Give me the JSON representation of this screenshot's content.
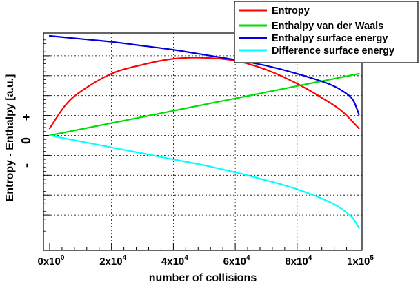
{
  "chart_data": {
    "type": "line",
    "xlabel": "number of collisions",
    "ylabel": "Entropy - Enthalpy [a.u.]",
    "xlim": [
      0,
      100000
    ],
    "ylim": [
      -100,
      100
    ],
    "grid": true,
    "legend_position": "top-right",
    "x_ticks": [
      {
        "value": 0,
        "base": "0x10",
        "exp": "0"
      },
      {
        "value": 20000,
        "base": "2x10",
        "exp": "4"
      },
      {
        "value": 40000,
        "base": "4x10",
        "exp": "4"
      },
      {
        "value": 60000,
        "base": "6x10",
        "exp": "4"
      },
      {
        "value": 80000,
        "base": "8x10",
        "exp": "4"
      },
      {
        "value": 100000,
        "base": "1x10",
        "exp": "5"
      }
    ],
    "y_sign_labels": {
      "plus": "+",
      "zero": "0",
      "minus": "-"
    },
    "series": [
      {
        "name": "Entropy",
        "color": "#ff0000",
        "x": [
          0,
          5000,
          10000,
          20000,
          30000,
          40000,
          50000,
          60000,
          70000,
          80000,
          90000,
          95000,
          100000
        ],
        "y": [
          7,
          30,
          44,
          62,
          71,
          77,
          78,
          75,
          66,
          52,
          34,
          23,
          7
        ]
      },
      {
        "name": "Enthalpy van der Waals",
        "color": "#00dd00",
        "x": [
          0,
          100000
        ],
        "y": [
          0,
          62
        ]
      },
      {
        "name": "Enthalpy surface energy",
        "color": "#0000dd",
        "x": [
          0,
          10000,
          20000,
          30000,
          40000,
          50000,
          60000,
          70000,
          80000,
          90000,
          95000,
          98000,
          100000
        ],
        "y": [
          100,
          97,
          94,
          90,
          86,
          81,
          76,
          70,
          62,
          52,
          44,
          36,
          21
        ]
      },
      {
        "name": "Difference surface energy",
        "color": "#00ffff",
        "x": [
          0,
          10000,
          20000,
          30000,
          40000,
          50000,
          60000,
          70000,
          80000,
          90000,
          95000,
          98000,
          100000
        ],
        "y": [
          0,
          -6,
          -12,
          -18,
          -24,
          -30,
          -37,
          -45,
          -54,
          -66,
          -75,
          -83,
          -93
        ]
      }
    ]
  }
}
